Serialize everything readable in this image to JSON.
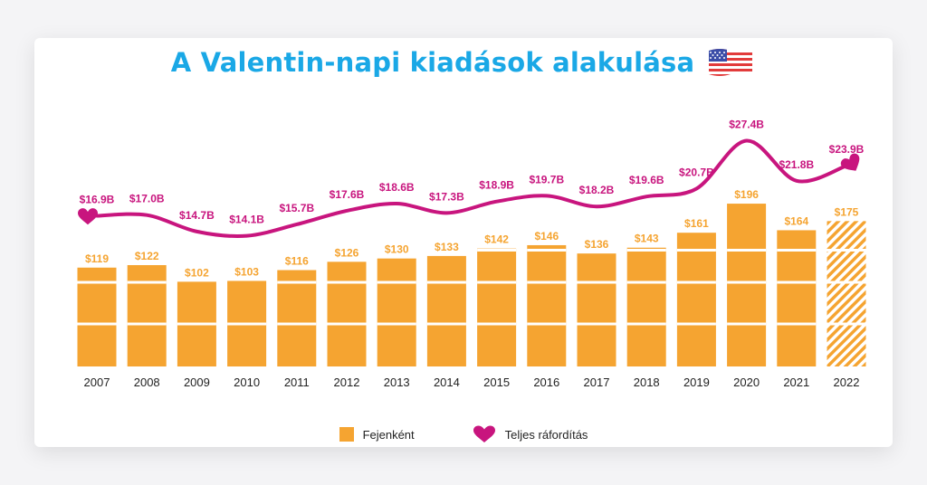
{
  "title": "A Valentin-napi kiadások alakulása",
  "flag_icon": "us-flag-icon",
  "colors": {
    "bar": "#f5a431",
    "bar_label": "#f5a431",
    "line": "#c8157e",
    "title": "#1aa8e6"
  },
  "legend": {
    "bar_label": "Fejenként",
    "line_label": "Teljes ráfordítás"
  },
  "chart_data": {
    "type": "bar",
    "categories": [
      "2007",
      "2008",
      "2009",
      "2010",
      "2011",
      "2012",
      "2013",
      "2014",
      "2015",
      "2016",
      "2017",
      "2018",
      "2019",
      "2020",
      "2021",
      "2022"
    ],
    "series": [
      {
        "name": "Fejenként",
        "type": "bar",
        "values": [
          119,
          122,
          102,
          103,
          116,
          126,
          130,
          133,
          142,
          146,
          136,
          143,
          161,
          196,
          164,
          175
        ],
        "labels": [
          "$119",
          "$122",
          "$102",
          "$103",
          "$116",
          "$126",
          "$130",
          "$133",
          "$142",
          "$146",
          "$136",
          "$143",
          "$161",
          "$196",
          "$164",
          "$175"
        ],
        "hatched": [
          false,
          false,
          false,
          false,
          false,
          false,
          false,
          false,
          false,
          false,
          false,
          false,
          false,
          false,
          false,
          true
        ]
      },
      {
        "name": "Teljes ráfordítás",
        "type": "line",
        "values": [
          16.9,
          17.0,
          14.7,
          14.1,
          15.7,
          17.6,
          18.6,
          17.3,
          18.9,
          19.7,
          18.2,
          19.6,
          20.7,
          27.4,
          21.8,
          23.9
        ],
        "labels": [
          "$16.9B",
          "$17.0B",
          "$14.7B",
          "$14.1B",
          "$15.7B",
          "$17.6B",
          "$18.6B",
          "$17.3B",
          "$18.9B",
          "$19.7B",
          "$18.2B",
          "$19.6B",
          "$20.7B",
          "$27.4B",
          "$21.8B",
          "$23.9B"
        ]
      }
    ],
    "xlabel": "",
    "ylabel": "",
    "grid": false,
    "legend_position": "bottom-center"
  }
}
